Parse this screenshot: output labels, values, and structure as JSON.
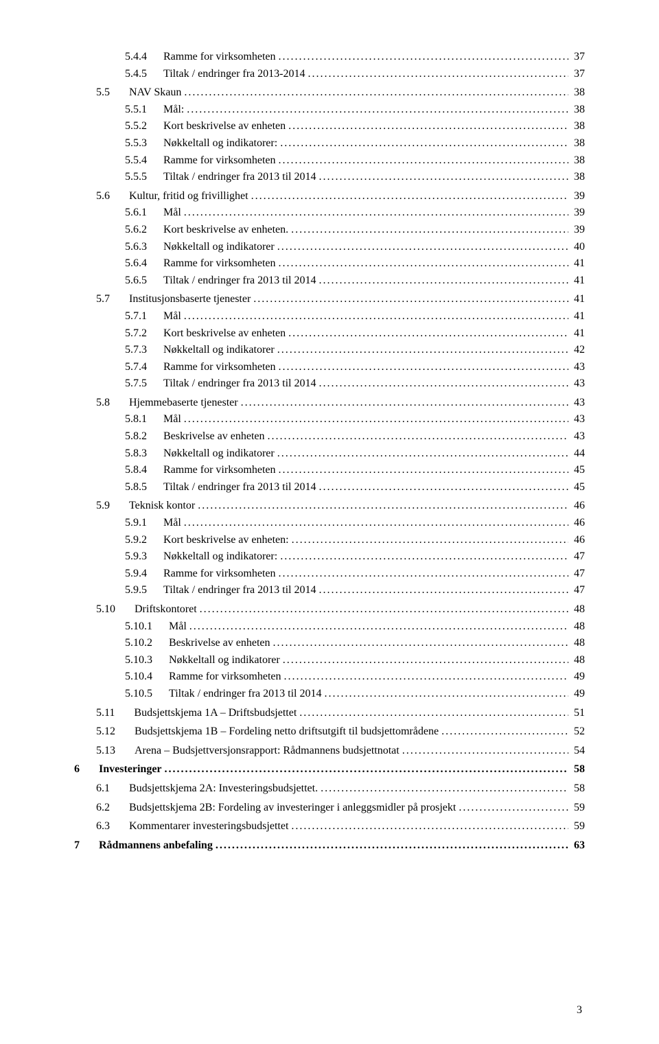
{
  "page_number": "3",
  "toc": [
    {
      "level": 3,
      "num": "5.4.4",
      "title": "Ramme for virksomheten",
      "page": "37"
    },
    {
      "level": 3,
      "num": "5.4.5",
      "title": "Tiltak / endringer fra 2013-2014",
      "page": "37"
    },
    {
      "level": 2,
      "num": "5.5",
      "title": "NAV Skaun",
      "page": "38",
      "group": true
    },
    {
      "level": 3,
      "num": "5.5.1",
      "title": "Mål:",
      "page": "38"
    },
    {
      "level": 3,
      "num": "5.5.2",
      "title": "Kort beskrivelse av enheten",
      "page": "38"
    },
    {
      "level": 3,
      "num": "5.5.3",
      "title": "Nøkkeltall og indikatorer:",
      "page": "38"
    },
    {
      "level": 3,
      "num": "5.5.4",
      "title": "Ramme for virksomheten",
      "page": "38"
    },
    {
      "level": 3,
      "num": "5.5.5",
      "title": "Tiltak / endringer fra 2013 til 2014",
      "page": "38"
    },
    {
      "level": 2,
      "num": "5.6",
      "title": "Kultur, fritid og frivillighet",
      "page": "39",
      "group": true
    },
    {
      "level": 3,
      "num": "5.6.1",
      "title": "Mål",
      "page": "39"
    },
    {
      "level": 3,
      "num": "5.6.2",
      "title": "Kort beskrivelse av enheten.",
      "page": "39"
    },
    {
      "level": 3,
      "num": "5.6.3",
      "title": "Nøkkeltall og indikatorer",
      "page": "40"
    },
    {
      "level": 3,
      "num": "5.6.4",
      "title": "Ramme for virksomheten",
      "page": "41"
    },
    {
      "level": 3,
      "num": "5.6.5",
      "title": "Tiltak / endringer fra 2013 til 2014",
      "page": "41"
    },
    {
      "level": 2,
      "num": "5.7",
      "title": "Institusjonsbaserte tjenester",
      "page": "41",
      "group": true
    },
    {
      "level": 3,
      "num": "5.7.1",
      "title": "Mål",
      "page": "41"
    },
    {
      "level": 3,
      "num": "5.7.2",
      "title": "Kort beskrivelse av enheten",
      "page": "41"
    },
    {
      "level": 3,
      "num": "5.7.3",
      "title": "Nøkkeltall og indikatorer",
      "page": "42"
    },
    {
      "level": 3,
      "num": "5.7.4",
      "title": "Ramme for virksomheten",
      "page": "43"
    },
    {
      "level": 3,
      "num": "5.7.5",
      "title": "Tiltak / endringer fra 2013 til 2014",
      "page": "43"
    },
    {
      "level": 2,
      "num": "5.8",
      "title": "Hjemmebaserte tjenester",
      "page": "43",
      "group": true
    },
    {
      "level": 3,
      "num": "5.8.1",
      "title": "Mål",
      "page": "43"
    },
    {
      "level": 3,
      "num": "5.8.2",
      "title": "Beskrivelse av enheten",
      "page": "43"
    },
    {
      "level": 3,
      "num": "5.8.3",
      "title": "Nøkkeltall og indikatorer",
      "page": "44"
    },
    {
      "level": 3,
      "num": "5.8.4",
      "title": "Ramme for virksomheten",
      "page": "45"
    },
    {
      "level": 3,
      "num": "5.8.5",
      "title": "Tiltak / endringer fra 2013 til 2014",
      "page": "45"
    },
    {
      "level": 2,
      "num": "5.9",
      "title": "Teknisk kontor",
      "page": "46",
      "group": true
    },
    {
      "level": 3,
      "num": "5.9.1",
      "title": "Mål",
      "page": "46"
    },
    {
      "level": 3,
      "num": "5.9.2",
      "title": "Kort beskrivelse av enheten:",
      "page": "46"
    },
    {
      "level": 3,
      "num": "5.9.3",
      "title": "Nøkkeltall og indikatorer:",
      "page": "47"
    },
    {
      "level": 3,
      "num": "5.9.4",
      "title": "Ramme for virksomheten",
      "page": "47"
    },
    {
      "level": 3,
      "num": "5.9.5",
      "title": "Tiltak / endringer fra 2013 til 2014",
      "page": "47"
    },
    {
      "level": 2,
      "num": "5.10",
      "title": "Driftskontoret",
      "page": "48",
      "group": true
    },
    {
      "level": 3,
      "num": "5.10.1",
      "title": "Mål",
      "page": "48"
    },
    {
      "level": 3,
      "num": "5.10.2",
      "title": "Beskrivelse av enheten",
      "page": "48"
    },
    {
      "level": 3,
      "num": "5.10.3",
      "title": "Nøkkeltall og indikatorer",
      "page": "48"
    },
    {
      "level": 3,
      "num": "5.10.4",
      "title": "Ramme for virksomheten",
      "page": "49"
    },
    {
      "level": 3,
      "num": "5.10.5",
      "title": "Tiltak / endringer fra 2013 til 2014",
      "page": "49"
    },
    {
      "level": 2,
      "num": "5.11",
      "title": "Budsjettskjema 1A – Driftsbudsjettet",
      "page": "51",
      "group": true
    },
    {
      "level": 2,
      "num": "5.12",
      "title": "Budsjettskjema 1B – Fordeling netto driftsutgift til budsjettområdene",
      "page": "52",
      "group": true
    },
    {
      "level": 2,
      "num": "5.13",
      "title": "Arena – Budsjettversjonsrapport: Rådmannens budsjettnotat",
      "page": "54",
      "group": true
    },
    {
      "level": 1,
      "num": "6",
      "title": "Investeringer",
      "page": "58",
      "bold": true,
      "group": true
    },
    {
      "level": 2,
      "num": "6.1",
      "title": "Budsjettskjema 2A: Investeringsbudsjettet.",
      "page": "58",
      "group": true
    },
    {
      "level": 2,
      "num": "6.2",
      "title": "Budsjettskjema 2B: Fordeling av investeringer i anleggsmidler på prosjekt",
      "page": "59",
      "group": true
    },
    {
      "level": 2,
      "num": "6.3",
      "title": "Kommentarer investeringsbudsjettet",
      "page": "59",
      "group": true
    },
    {
      "level": 1,
      "num": "7",
      "title": "Rådmannens anbefaling",
      "page": "63",
      "bold": true,
      "group": true
    }
  ],
  "layout": {
    "gap_l1": "28px",
    "gap_l2": "28px",
    "gap_l3": "24px"
  }
}
